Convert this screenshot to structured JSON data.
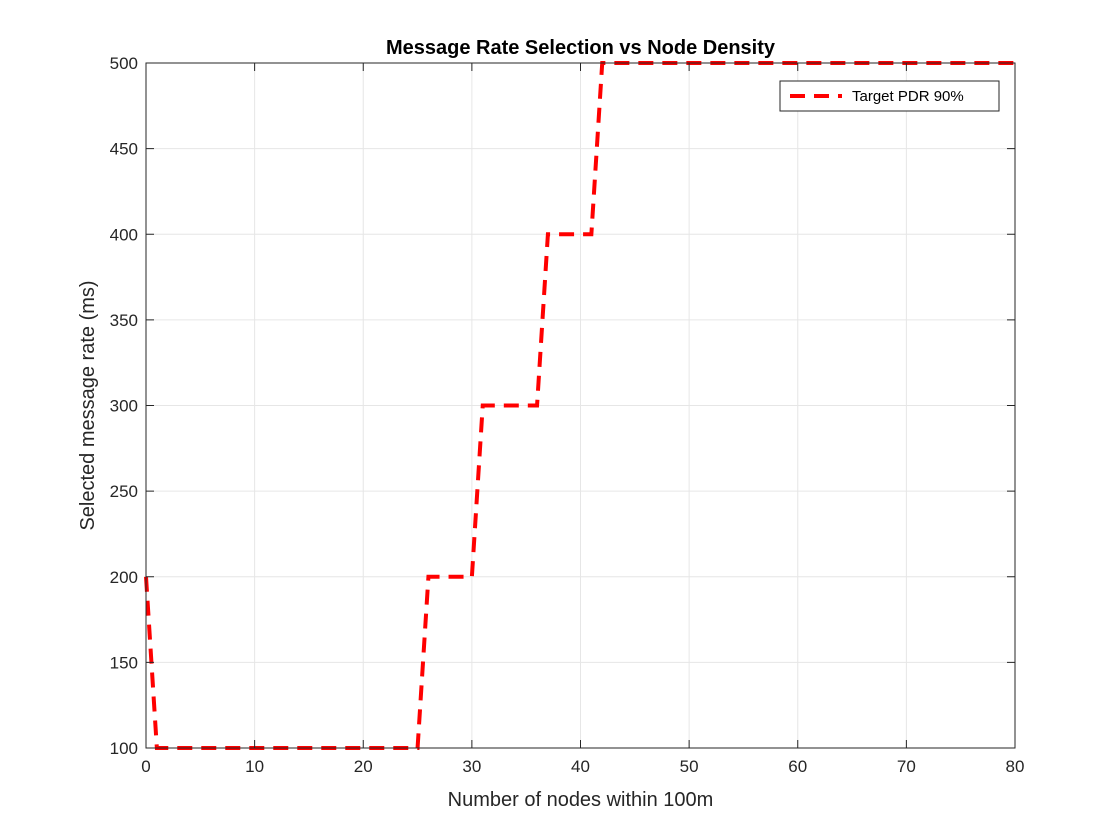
{
  "chart_data": {
    "type": "line",
    "title": "Message Rate Selection vs Node Density",
    "xlabel": "Number of nodes within 100m",
    "ylabel": "Selected message rate (ms)",
    "xlim": [
      0,
      80
    ],
    "ylim": [
      100,
      500
    ],
    "xticks": [
      0,
      10,
      20,
      30,
      40,
      50,
      60,
      70,
      80
    ],
    "yticks": [
      100,
      150,
      200,
      250,
      300,
      350,
      400,
      450,
      500
    ],
    "grid": true,
    "legend_location": "top-right",
    "series": [
      {
        "name": "Target PDR 90%",
        "color": "#ff0000",
        "line_style": "dashed",
        "x": [
          0,
          1,
          2,
          3,
          4,
          5,
          6,
          7,
          8,
          9,
          10,
          11,
          12,
          13,
          14,
          15,
          16,
          17,
          18,
          19,
          20,
          21,
          22,
          23,
          24,
          25,
          26,
          27,
          28,
          29,
          30,
          31,
          32,
          33,
          34,
          35,
          36,
          37,
          38,
          39,
          40,
          41,
          42,
          43,
          44,
          45,
          46,
          47,
          48,
          49,
          50,
          51,
          52,
          53,
          54,
          55,
          56,
          57,
          58,
          59,
          60,
          61,
          62,
          63,
          64,
          65,
          66,
          67,
          68,
          69,
          70,
          71,
          72,
          73,
          74,
          75,
          76,
          77,
          78,
          79,
          80
        ],
        "y": [
          200,
          100,
          100,
          100,
          100,
          100,
          100,
          100,
          100,
          100,
          100,
          100,
          100,
          100,
          100,
          100,
          100,
          100,
          100,
          100,
          100,
          100,
          100,
          100,
          100,
          100,
          200,
          200,
          200,
          200,
          200,
          300,
          300,
          300,
          300,
          300,
          300,
          400,
          400,
          400,
          400,
          400,
          500,
          500,
          500,
          500,
          500,
          500,
          500,
          500,
          500,
          500,
          500,
          500,
          500,
          500,
          500,
          500,
          500,
          500,
          500,
          500,
          500,
          500,
          500,
          500,
          500,
          500,
          500,
          500,
          500,
          500,
          500,
          500,
          500,
          500,
          500,
          500,
          500,
          500,
          500
        ]
      }
    ]
  }
}
